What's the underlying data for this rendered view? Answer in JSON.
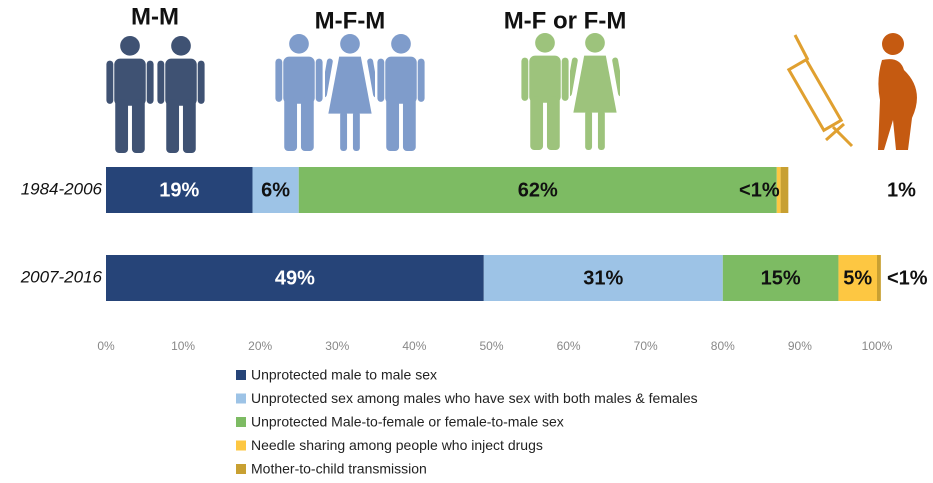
{
  "chart_data": {
    "type": "bar",
    "orientation": "horizontal",
    "stacked": true,
    "annotations": [
      "M-M",
      "M-F-M",
      "M-F or F-M"
    ],
    "categories": [
      "1984-2006",
      "2007-2016"
    ],
    "series": [
      {
        "name": "Unprotected male to male sex",
        "color": "#264478",
        "values": [
          19,
          49
        ],
        "value_labels": [
          "19%",
          "49%"
        ]
      },
      {
        "name": "Unprotected sex among males who have sex with both males & females",
        "color": "#9dc3e6",
        "values": [
          6,
          31
        ],
        "value_labels": [
          "6%",
          "31%"
        ]
      },
      {
        "name": "Unprotected Male-to-female or female-to-male sex",
        "color": "#7dbb63",
        "values": [
          62,
          15
        ],
        "value_labels": [
          "62%",
          "15%"
        ]
      },
      {
        "name": "Needle sharing among people who inject drugs",
        "color": "#fdc742",
        "values": [
          0.5,
          5
        ],
        "value_labels": [
          "<1%",
          "5%"
        ]
      },
      {
        "name": "Mother-to-child transmission",
        "color": "#c8a032",
        "values": [
          1,
          0.5
        ],
        "value_labels": [
          "1%",
          "<1%"
        ]
      }
    ],
    "xlim": [
      0,
      100
    ],
    "xticks": [
      {
        "value": 0,
        "label": "0%"
      },
      {
        "value": 10,
        "label": "10%"
      },
      {
        "value": 20,
        "label": "20%"
      },
      {
        "value": 30,
        "label": "30%"
      },
      {
        "value": 40,
        "label": "40%"
      },
      {
        "value": 50,
        "label": "50%"
      },
      {
        "value": 60,
        "label": "60%"
      },
      {
        "value": 70,
        "label": "70%"
      },
      {
        "value": 80,
        "label": "80%"
      },
      {
        "value": 90,
        "label": "90%"
      },
      {
        "value": 100,
        "label": "100%"
      }
    ],
    "grid": false
  }
}
